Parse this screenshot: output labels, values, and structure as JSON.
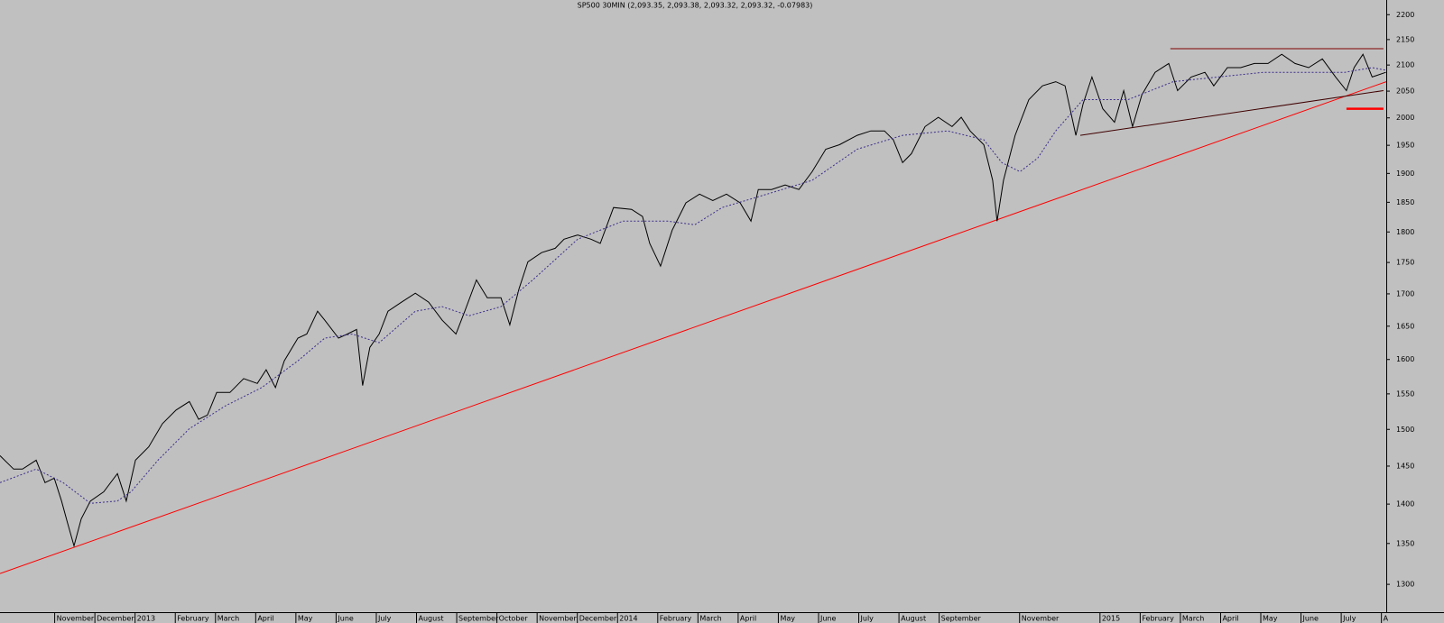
{
  "chart_data": {
    "type": "line",
    "title": "SP500 30MIN (2,093.35, 2,093.38, 2,093.32, 2,093.32, -0.07983)",
    "log_y": true,
    "background": "#c0c0c0",
    "xlim": [
      -0.36,
      34.12
    ],
    "ylim": [
      1267,
      2230
    ],
    "yticks": [
      1300,
      1350,
      1400,
      1450,
      1500,
      1550,
      1600,
      1650,
      1700,
      1750,
      1800,
      1850,
      1900,
      1950,
      2000,
      2050,
      2100,
      2150,
      2200
    ],
    "xticks": [
      {
        "value": 1,
        "label": "November"
      },
      {
        "value": 2,
        "label": "December"
      },
      {
        "value": 3,
        "label": "2013"
      },
      {
        "value": 4,
        "label": "February"
      },
      {
        "value": 5,
        "label": "March"
      },
      {
        "value": 6,
        "label": "April"
      },
      {
        "value": 7,
        "label": "May"
      },
      {
        "value": 8,
        "label": "June"
      },
      {
        "value": 9,
        "label": "July"
      },
      {
        "value": 10,
        "label": "August"
      },
      {
        "value": 11,
        "label": "September"
      },
      {
        "value": 12,
        "label": "October"
      },
      {
        "value": 13,
        "label": "November"
      },
      {
        "value": 14,
        "label": "December"
      },
      {
        "value": 15,
        "label": "2014"
      },
      {
        "value": 16,
        "label": "February"
      },
      {
        "value": 17,
        "label": "March"
      },
      {
        "value": 18,
        "label": "April"
      },
      {
        "value": 19,
        "label": "May"
      },
      {
        "value": 20,
        "label": "June"
      },
      {
        "value": 21,
        "label": "July"
      },
      {
        "value": 22,
        "label": "August"
      },
      {
        "value": 23,
        "label": "September"
      },
      {
        "value": 25,
        "label": "November"
      },
      {
        "value": 27,
        "label": "2015"
      },
      {
        "value": 28,
        "label": "February"
      },
      {
        "value": 29,
        "label": "March"
      },
      {
        "value": 30,
        "label": "April"
      },
      {
        "value": 31,
        "label": "May"
      },
      {
        "value": 32,
        "label": "June"
      },
      {
        "value": 33,
        "label": "July"
      },
      {
        "value": 34,
        "label": "A"
      }
    ],
    "series": [
      {
        "color": "#000000",
        "dashed": false,
        "x": [
          -0.36,
          -0.02,
          0.2,
          0.54,
          0.76,
          0.99,
          1.17,
          1.32,
          1.48,
          1.66,
          1.89,
          2.22,
          2.56,
          2.78,
          3.01,
          3.34,
          3.68,
          4.02,
          4.35,
          4.58,
          4.8,
          5.03,
          5.36,
          5.7,
          6.04,
          6.26,
          6.49,
          6.71,
          7.05,
          7.27,
          7.54,
          7.72,
          8.06,
          8.28,
          8.51,
          8.66,
          8.84,
          9.07,
          9.29,
          9.63,
          9.97,
          10.3,
          10.64,
          10.98,
          11.2,
          11.49,
          11.76,
          12.1,
          12.32,
          12.55,
          12.77,
          13.11,
          13.45,
          13.67,
          14.01,
          14.34,
          14.57,
          14.9,
          15.35,
          15.62,
          15.8,
          16.07,
          16.36,
          16.7,
          17.04,
          17.37,
          17.71,
          18.05,
          18.32,
          18.5,
          18.83,
          19.17,
          19.51,
          19.84,
          20.18,
          20.52,
          20.96,
          21.3,
          21.64,
          21.86,
          22.09,
          22.31,
          22.65,
          22.98,
          23.32,
          23.55,
          23.77,
          24.11,
          24.33,
          24.44,
          24.6,
          24.89,
          25.23,
          25.57,
          25.9,
          26.13,
          26.4,
          26.58,
          26.8,
          27.07,
          27.36,
          27.59,
          27.81,
          28.04,
          28.37,
          28.71,
          28.93,
          29.27,
          29.61,
          29.83,
          30.17,
          30.5,
          30.84,
          31.18,
          31.52,
          31.85,
          32.19,
          32.53,
          32.86,
          33.13,
          33.32,
          33.54,
          33.77,
          34.11
        ],
        "values": [
          1464,
          1446,
          1446,
          1458,
          1428,
          1434,
          1404,
          1376,
          1347,
          1381,
          1404,
          1416,
          1440,
          1404,
          1458,
          1476,
          1508,
          1527,
          1539,
          1514,
          1520,
          1552,
          1552,
          1572,
          1565,
          1585,
          1559,
          1598,
          1632,
          1638,
          1673,
          1659,
          1632,
          1638,
          1645,
          1562,
          1618,
          1638,
          1673,
          1687,
          1701,
          1687,
          1659,
          1638,
          1673,
          1722,
          1694,
          1694,
          1652,
          1708,
          1751,
          1766,
          1773,
          1788,
          1795,
          1788,
          1781,
          1841,
          1838,
          1826,
          1781,
          1744,
          1803,
          1849,
          1864,
          1853,
          1864,
          1849,
          1818,
          1872,
          1872,
          1880,
          1872,
          1903,
          1943,
          1951,
          1968,
          1976,
          1976,
          1960,
          1919,
          1935,
          1984,
          2001,
          1984,
          2001,
          1976,
          1951,
          1888,
          1818,
          1888,
          1968,
          2034,
          2060,
          2068,
          2060,
          1968,
          2026,
          2077,
          2017,
          1992,
          2051,
          1984,
          2043,
          2086,
          2103,
          2051,
          2077,
          2086,
          2060,
          2095,
          2095,
          2103,
          2103,
          2121,
          2103,
          2095,
          2112,
          2077,
          2051,
          2095,
          2121,
          2077,
          2086
        ]
      },
      {
        "color": "#3c2e8c",
        "dashed": true,
        "x": [
          -0.36,
          0.54,
          1.21,
          1.89,
          2.56,
          2.9,
          3.57,
          4.35,
          5.25,
          6.15,
          7.05,
          7.72,
          8.4,
          9.07,
          9.97,
          10.64,
          11.31,
          12.1,
          12.89,
          14.01,
          15.13,
          16.25,
          16.92,
          17.6,
          18.72,
          19.84,
          20.96,
          22.09,
          23.21,
          24.11,
          24.56,
          25.01,
          25.45,
          25.9,
          26.58,
          27.7,
          28.82,
          29.94,
          31.07,
          32.19,
          33.09,
          33.77,
          34.11
        ],
        "values": [
          1428,
          1446,
          1428,
          1401,
          1404,
          1416,
          1458,
          1501,
          1533,
          1559,
          1598,
          1632,
          1638,
          1625,
          1673,
          1680,
          1666,
          1680,
          1722,
          1788,
          1818,
          1818,
          1812,
          1841,
          1864,
          1888,
          1943,
          1968,
          1976,
          1960,
          1919,
          1903,
          1927,
          1976,
          2034,
          2034,
          2068,
          2077,
          2086,
          2086,
          2086,
          2095,
          2090
        ]
      }
    ],
    "trendlines": [
      {
        "color": "#ff0000",
        "width": 1,
        "x": [
          -0.36,
          34.12
        ],
        "values": [
          1313,
          2068
        ]
      },
      {
        "color": "#800000",
        "width": 1,
        "x": [
          28.75,
          34.05
        ],
        "values": [
          2132,
          2132
        ]
      },
      {
        "color": "#400000",
        "width": 1,
        "x": [
          26.51,
          34.05
        ],
        "values": [
          1968,
          2051
        ]
      },
      {
        "color": "#ff0000",
        "width": 2.5,
        "x": [
          33.13,
          34.05
        ],
        "values": [
          2017,
          2017
        ]
      }
    ]
  }
}
